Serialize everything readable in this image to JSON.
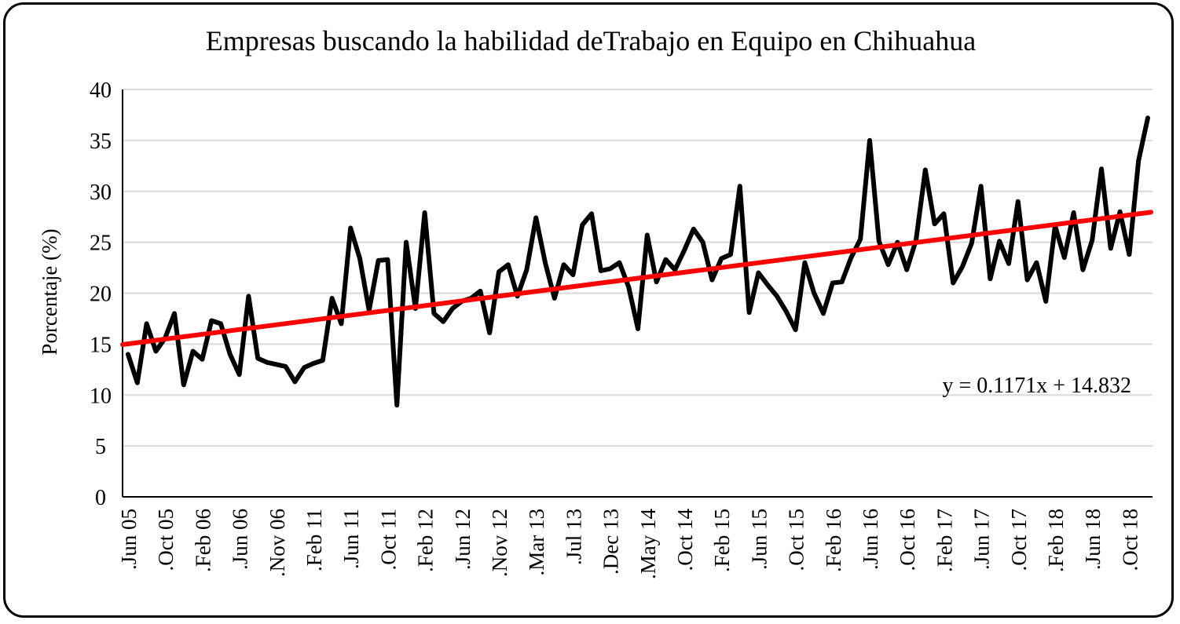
{
  "chart_data": {
    "type": "line",
    "title": "Empresas buscando la habilidad deTrabajo en Equipo en Chihuahua",
    "xlabel": "",
    "ylabel": "Porcentaje (%)",
    "ylim": [
      0,
      40
    ],
    "yticks": [
      0,
      5,
      10,
      15,
      20,
      25,
      30,
      35,
      40
    ],
    "grid": true,
    "x_tick_labels": [
      ".Jun 05",
      ".Oct 05",
      ".Feb 06",
      ".Jun 06",
      ".Nov 06",
      ".Feb 11",
      ".Jun 11",
      ".Oct 11",
      ".Feb 12",
      ".Jun 12",
      ".Nov 12",
      ".Mar 13",
      ".Jul 13",
      ".Dec 13",
      ".May 14",
      ".Oct 14",
      ".Feb 15",
      ".Jun 15",
      ".Oct 15",
      ".Feb 16",
      ".Jun 16",
      ".Oct 16",
      ".Feb 17",
      ".Jun 17",
      ".Oct 17",
      ".Feb 18",
      ".Jun 18",
      ".Oct 18"
    ],
    "series": [
      {
        "name": "",
        "color": "#000000",
        "values": [
          14.0,
          11.2,
          17.0,
          14.3,
          15.6,
          18.0,
          11.0,
          14.3,
          13.5,
          17.3,
          17.0,
          14.0,
          12.0,
          19.7,
          13.6,
          13.2,
          13.0,
          12.8,
          11.3,
          12.7,
          13.1,
          13.4,
          19.5,
          17.0,
          26.4,
          23.4,
          18.3,
          23.2,
          23.3,
          9.0,
          25.0,
          18.5,
          27.9,
          18.0,
          17.2,
          18.5,
          19.2,
          19.5,
          20.2,
          16.1,
          22.1,
          22.8,
          19.7,
          22.3,
          27.4,
          23.0,
          19.5,
          22.8,
          21.8,
          26.7,
          27.8,
          22.2,
          22.4,
          23.0,
          20.6,
          16.5,
          25.7,
          21.1,
          23.3,
          22.3,
          24.2,
          26.3,
          25.0,
          21.3,
          23.4,
          23.8,
          30.5,
          18.1,
          22.0,
          20.8,
          19.7,
          18.2,
          16.4,
          23.0,
          20.0,
          18.0,
          21.0,
          21.1,
          23.5,
          25.3,
          35.0,
          25.1,
          22.8,
          25.0,
          22.3,
          25.2,
          32.1,
          26.8,
          27.8,
          21.0,
          22.6,
          24.9,
          30.5,
          21.4,
          25.1,
          22.9,
          29.0,
          21.3,
          23.0,
          19.2,
          26.6,
          23.5,
          27.9,
          22.3,
          25.2,
          32.2,
          24.4,
          28.0,
          23.8,
          33.0,
          37.2
        ]
      },
      {
        "name": "",
        "color": "#ff0000",
        "trendline": true,
        "slope": 0.1171,
        "intercept": 14.832
      }
    ],
    "annotations": [
      "y = 0.1171x + 14.832"
    ]
  }
}
